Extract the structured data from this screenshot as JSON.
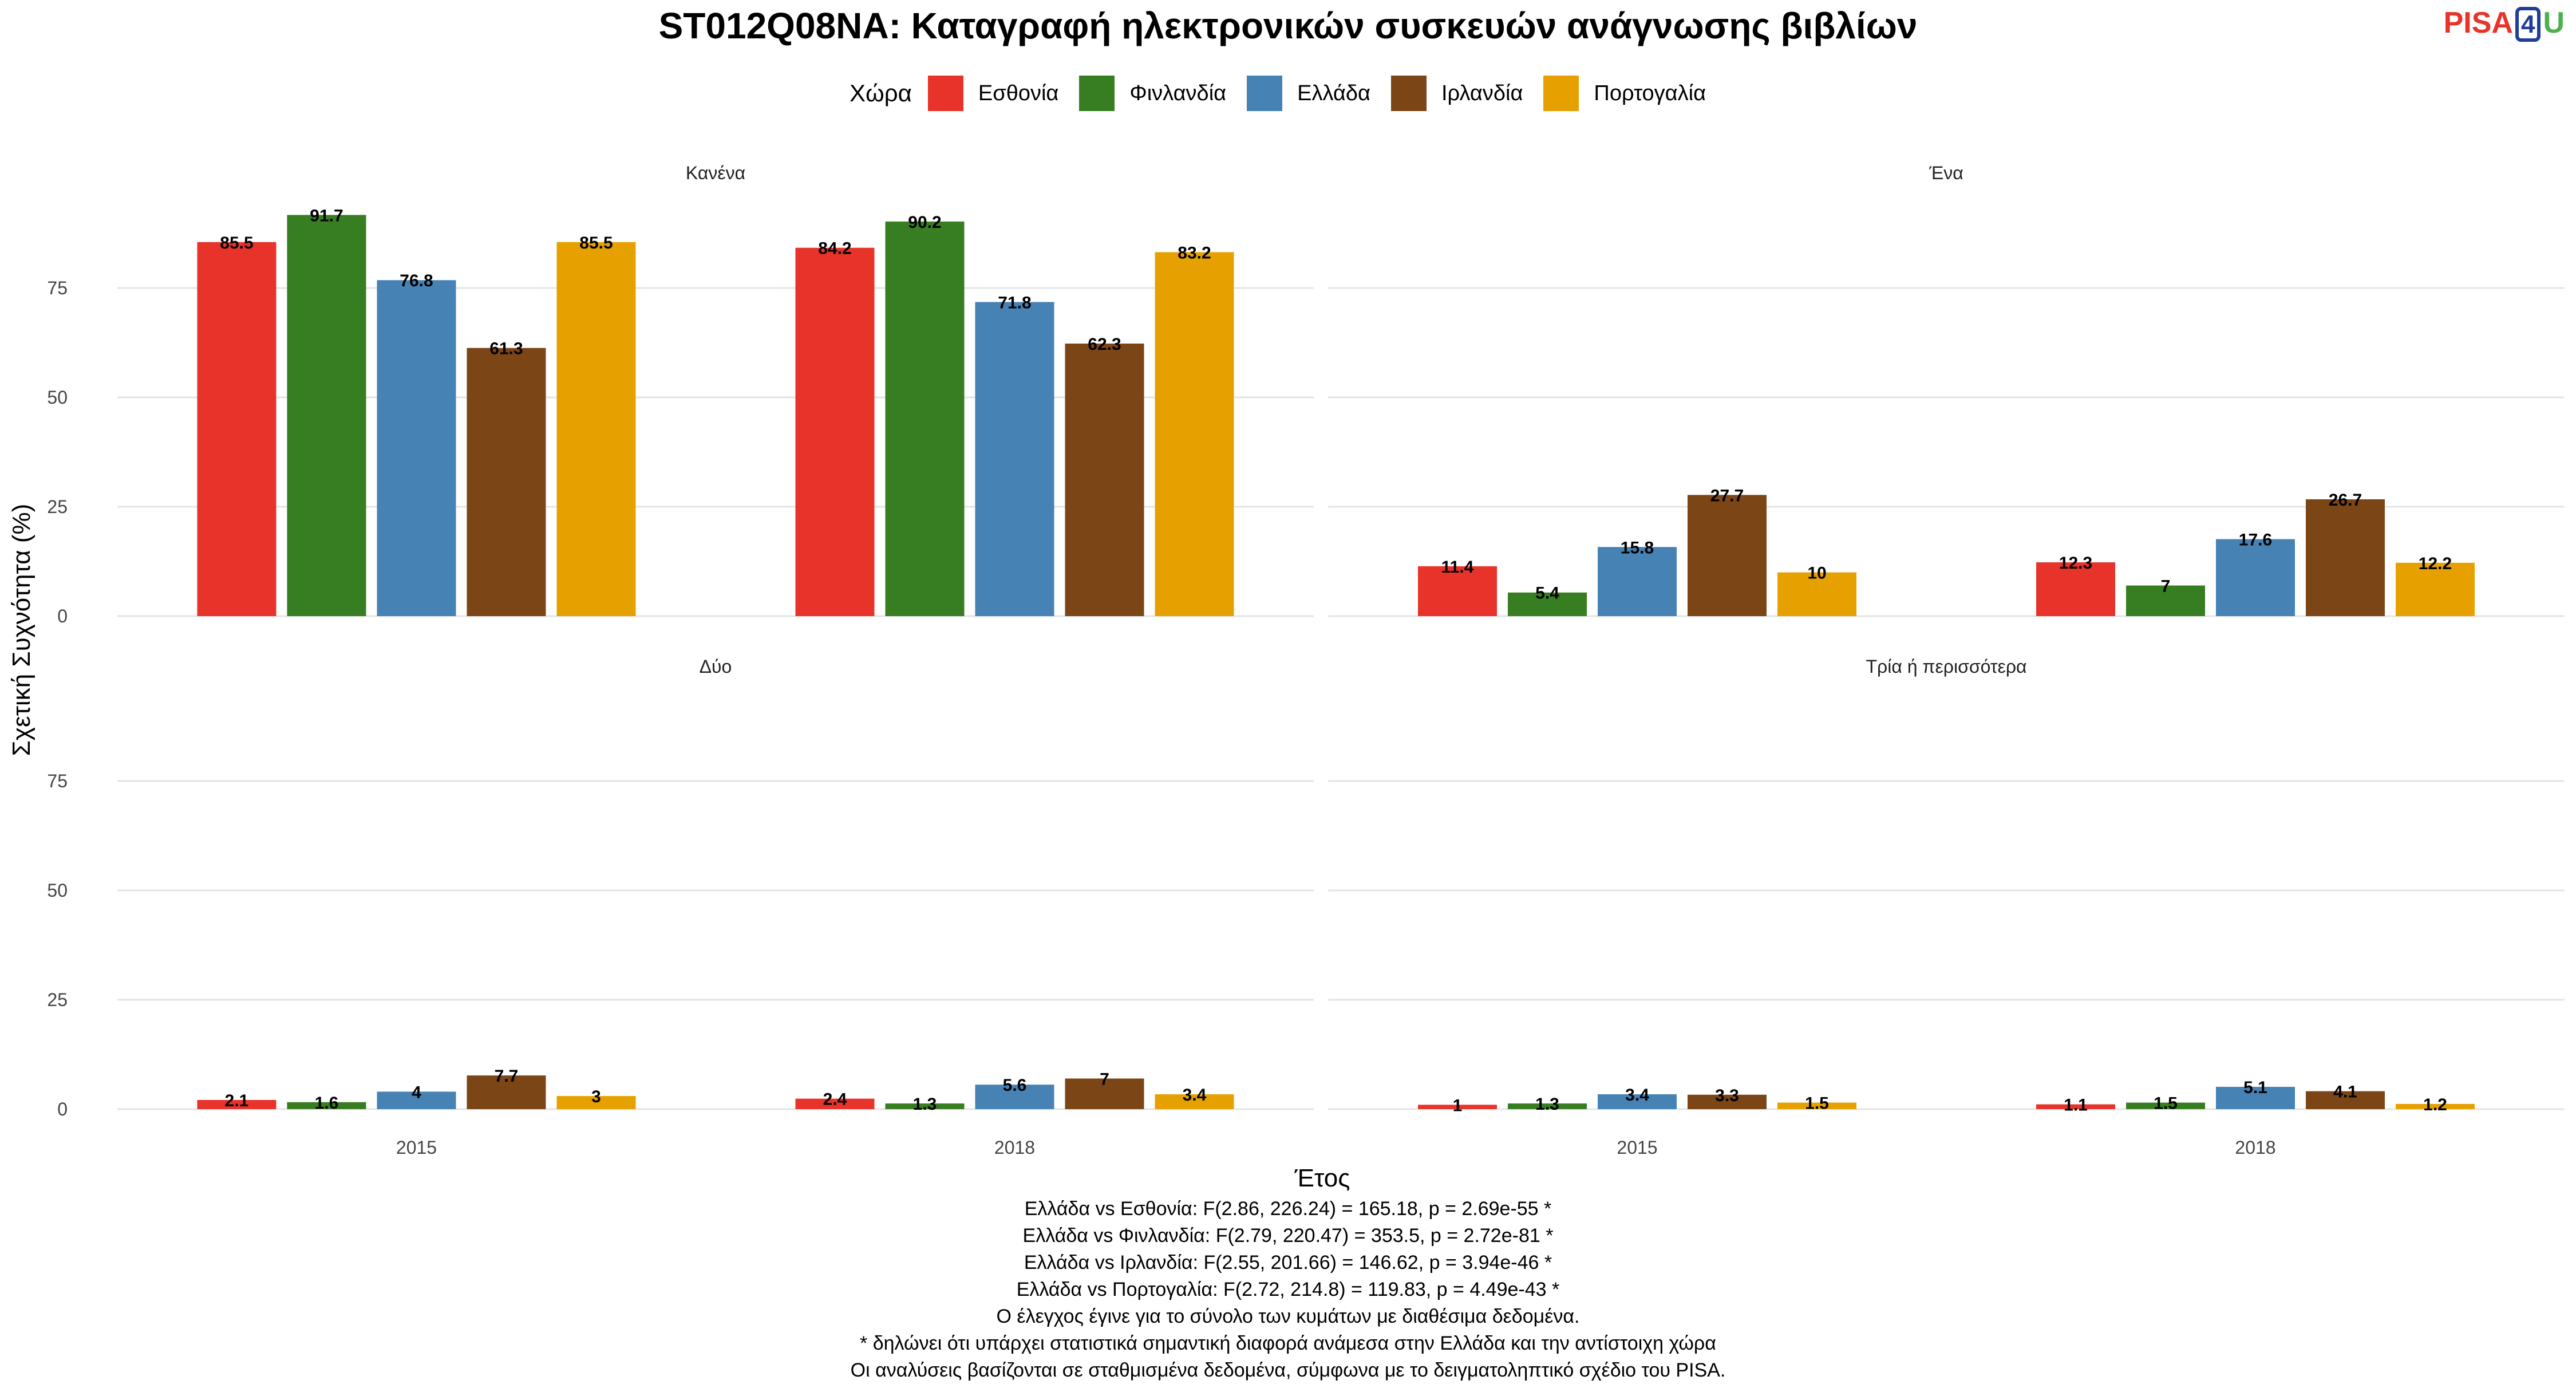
{
  "title": "ST012Q08NA: Καταγραφή ηλεκτρονικών συσκευών ανάγνωσης βιβλίων",
  "logo": {
    "pisa": "PISA",
    "four": "4",
    "u": "U"
  },
  "legend": {
    "title": "Χώρα",
    "items": [
      {
        "label": "Εσθονία",
        "color": "#e8332a"
      },
      {
        "label": "Φινλανδία",
        "color": "#377e22"
      },
      {
        "label": "Ελλάδα",
        "color": "#4682b4"
      },
      {
        "label": "Ιρλανδία",
        "color": "#7b4516"
      },
      {
        "label": "Πορτογαλία",
        "color": "#e6a100"
      }
    ]
  },
  "chart_data": {
    "type": "bar",
    "xlabel": "Έτος",
    "ylabel": "Σχετική Συχνότητα (%)",
    "ylim": [
      0,
      100
    ],
    "yticks": [
      0,
      25,
      50,
      75
    ],
    "categories": [
      "2015",
      "2018"
    ],
    "series_names": [
      "Εσθονία",
      "Φινλανδία",
      "Ελλάδα",
      "Ιρλανδία",
      "Πορτογαλία"
    ],
    "grid": true,
    "legend_position": "top",
    "panels": [
      {
        "label": "Κανένα",
        "values": {
          "2015": [
            85.5,
            91.7,
            76.8,
            61.3,
            85.5
          ],
          "2018": [
            84.2,
            90.2,
            71.8,
            62.3,
            83.2
          ]
        }
      },
      {
        "label": "Ένα",
        "values": {
          "2015": [
            11.4,
            5.4,
            15.8,
            27.7,
            10
          ],
          "2018": [
            12.3,
            7,
            17.6,
            26.7,
            12.2
          ]
        }
      },
      {
        "label": "Δύο",
        "values": {
          "2015": [
            2.1,
            1.6,
            4,
            7.7,
            3
          ],
          "2018": [
            2.4,
            1.3,
            5.6,
            7,
            3.4
          ]
        }
      },
      {
        "label": "Τρία ή περισσότερα",
        "values": {
          "2015": [
            1,
            1.3,
            3.4,
            3.3,
            1.5
          ],
          "2018": [
            1.1,
            1.5,
            5.1,
            4.1,
            1.2
          ]
        }
      }
    ]
  },
  "footnotes": [
    "Ελλάδα vs Εσθονία: F(2.86, 226.24) = 165.18, p = 2.69e-55 *",
    "Ελλάδα vs Φινλανδία: F(2.79, 220.47) = 353.5, p = 2.72e-81 *",
    "Ελλάδα vs Ιρλανδία: F(2.55, 201.66) = 146.62, p = 3.94e-46 *",
    "Ελλάδα vs Πορτογαλία: F(2.72, 214.8) = 119.83, p = 4.49e-43 *",
    "Ο έλεγχος έγινε για το σύνολο των κυμάτων με διαθέσιμα δεδομένα.",
    "* δηλώνει ότι υπάρχει στατιστικά σημαντική διαφορά ανάμεσα στην Ελλάδα και την αντίστοιχη χώρα",
    "Οι αναλύσεις βασίζονται σε σταθμισμένα δεδομένα, σύμφωνα με το δειγματοληπτικό σχέδιο του PISA."
  ]
}
